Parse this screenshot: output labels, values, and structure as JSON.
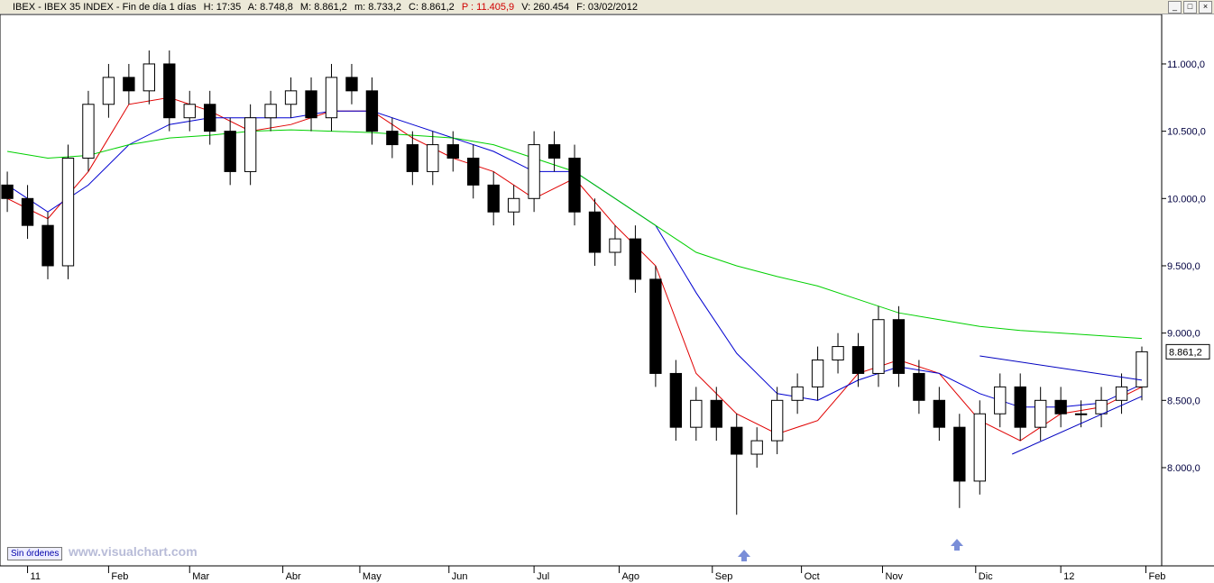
{
  "header": {
    "symbol": "IBEX - IBEX 35 INDEX - Fin de día 1 días",
    "high": "H: 17:35",
    "open": "A: 8.748,8",
    "max": "M: 8.861,2",
    "min": "m: 8.733,2",
    "close": "C: 8.861,2",
    "prev": "P : 11.405,9",
    "volume": "V: 260.454",
    "date": "F: 03/02/2012"
  },
  "footer": {
    "button": "Sin órdenes",
    "watermark": "www.visualchart.com"
  },
  "chart_data": {
    "type": "candlestick",
    "x": [
      0,
      5,
      10,
      15,
      20,
      25,
      30,
      35,
      40,
      45,
      50,
      55,
      60,
      65,
      70,
      75,
      80,
      85,
      90,
      95,
      100,
      105,
      110,
      115,
      120,
      125,
      130,
      135,
      140,
      145,
      150,
      155,
      160,
      165,
      170,
      175,
      180,
      185,
      190,
      195,
      200,
      205,
      210,
      215,
      220,
      225,
      230,
      235,
      240,
      245,
      250,
      255,
      260,
      265,
      270,
      275,
      280
    ],
    "open": [
      10100,
      10000,
      9800,
      9500,
      10300,
      10700,
      10900,
      10800,
      11000,
      10600,
      10700,
      10500,
      10200,
      10600,
      10700,
      10800,
      10600,
      10900,
      10800,
      10500,
      10400,
      10200,
      10400,
      10300,
      10100,
      9900,
      10000,
      10400,
      10300,
      9900,
      9600,
      9700,
      9400,
      8700,
      8300,
      8500,
      8300,
      8100,
      8200,
      8500,
      8600,
      8800,
      8900,
      8700,
      9100,
      8700,
      8500,
      8300,
      7900,
      8400,
      8600,
      8300,
      8500,
      8400,
      8400,
      8500,
      8600
    ],
    "high": [
      10200,
      10100,
      9900,
      10400,
      10800,
      11000,
      11000,
      11100,
      11100,
      10800,
      10800,
      10600,
      10700,
      10800,
      10900,
      10900,
      11000,
      11000,
      10900,
      10600,
      10500,
      10500,
      10500,
      10400,
      10200,
      10100,
      10500,
      10500,
      10400,
      10000,
      9800,
      9800,
      9500,
      8800,
      8600,
      8600,
      8400,
      8300,
      8600,
      8700,
      8900,
      9000,
      9000,
      9200,
      9200,
      8800,
      8600,
      8400,
      8500,
      8700,
      8700,
      8600,
      8600,
      8500,
      8600,
      8700,
      8900
    ],
    "low": [
      9900,
      9700,
      9400,
      9400,
      10200,
      10600,
      10700,
      10700,
      10500,
      10500,
      10400,
      10100,
      10100,
      10500,
      10600,
      10500,
      10500,
      10700,
      10400,
      10300,
      10100,
      10100,
      10200,
      10000,
      9800,
      9800,
      9900,
      10200,
      9800,
      9500,
      9500,
      9300,
      8600,
      8200,
      8200,
      8200,
      7650,
      8000,
      8100,
      8400,
      8500,
      8700,
      8600,
      8600,
      8600,
      8400,
      8200,
      7700,
      7800,
      8300,
      8200,
      8200,
      8300,
      8300,
      8300,
      8400,
      8500
    ],
    "close": [
      10000,
      9800,
      9500,
      10300,
      10700,
      10900,
      10800,
      11000,
      10600,
      10700,
      10500,
      10200,
      10600,
      10700,
      10800,
      10600,
      10900,
      10800,
      10500,
      10400,
      10200,
      10400,
      10300,
      10100,
      9900,
      10000,
      10400,
      10300,
      9900,
      9600,
      9700,
      9400,
      8700,
      8300,
      8500,
      8300,
      8100,
      8200,
      8500,
      8600,
      8800,
      8900,
      8700,
      9100,
      8700,
      8500,
      8300,
      7900,
      8400,
      8600,
      8300,
      8500,
      8400,
      8400,
      8500,
      8600,
      8861
    ],
    "up_color": "#ffffff",
    "down_color": "#000000",
    "averages": [
      {
        "color": "#e00000",
        "x": [
          0,
          10,
          20,
          30,
          40,
          50,
          60,
          70,
          80,
          90,
          100,
          110,
          120,
          130,
          140,
          150,
          160,
          170,
          180,
          190,
          200,
          210,
          220,
          230,
          240,
          250,
          260,
          270,
          280
        ],
        "values": [
          10000,
          9850,
          10200,
          10700,
          10750,
          10650,
          10500,
          10550,
          10650,
          10650,
          10450,
          10300,
          10200,
          10000,
          10150,
          9800,
          9500,
          8700,
          8400,
          8250,
          8350,
          8700,
          8800,
          8700,
          8350,
          8200,
          8400,
          8450,
          8600
        ]
      },
      {
        "color": "#0000d0",
        "x": [
          0,
          10,
          20,
          30,
          40,
          50,
          60,
          70,
          80,
          90,
          100,
          110,
          120,
          130,
          140,
          150,
          160,
          170,
          180,
          190,
          200,
          210,
          220,
          230,
          240,
          250,
          260,
          270,
          280
        ],
        "values": [
          10100,
          9900,
          10100,
          10400,
          10550,
          10600,
          10600,
          10600,
          10650,
          10650,
          10550,
          10450,
          10350,
          10200,
          10200,
          10000,
          9800,
          9300,
          8850,
          8550,
          8500,
          8650,
          8750,
          8700,
          8550,
          8450,
          8450,
          8480,
          8620
        ]
      },
      {
        "color": "#00d000",
        "x": [
          0,
          10,
          20,
          30,
          40,
          50,
          60,
          70,
          80,
          90,
          100,
          110,
          120,
          130,
          140,
          150,
          160,
          170,
          180,
          190,
          200,
          210,
          220,
          230,
          240,
          250,
          260,
          270,
          280
        ],
        "values": [
          10350,
          10300,
          10320,
          10400,
          10450,
          10470,
          10500,
          10510,
          10500,
          10490,
          10470,
          10450,
          10400,
          10300,
          10200,
          10000,
          9800,
          9600,
          9500,
          9420,
          9350,
          9250,
          9150,
          9100,
          9050,
          9020,
          9000,
          8980,
          8960
        ]
      }
    ],
    "trendlines": [
      {
        "color": "#0000c0",
        "x": [
          240,
          280
        ],
        "values": [
          8830,
          8650
        ]
      },
      {
        "color": "#0000c0",
        "x": [
          248,
          280
        ],
        "values": [
          8100,
          8530
        ]
      }
    ],
    "xlim": [
      -1.8,
      284.9
    ],
    "xticks": [
      {
        "value": 5,
        "label": "11"
      },
      {
        "value": 25,
        "label": "Feb"
      },
      {
        "value": 45,
        "label": "Mar"
      },
      {
        "value": 68,
        "label": "Abr"
      },
      {
        "value": 87,
        "label": "May"
      },
      {
        "value": 109,
        "label": "Jun"
      },
      {
        "value": 130,
        "label": "Jul"
      },
      {
        "value": 151,
        "label": "Ago"
      },
      {
        "value": 174,
        "label": "Sep"
      },
      {
        "value": 196,
        "label": "Oct"
      },
      {
        "value": 216,
        "label": "Nov"
      },
      {
        "value": 239,
        "label": "Dic"
      },
      {
        "value": 260,
        "label": "12"
      },
      {
        "value": 281,
        "label": "Feb"
      }
    ],
    "ylim": [
      7270,
      11368
    ],
    "yticks": [
      {
        "value": 8000,
        "label": "8.000,0"
      },
      {
        "value": 8500,
        "label": "8.500,0"
      },
      {
        "value": 9000,
        "label": "9.000,0"
      },
      {
        "value": 9500,
        "label": "9.500,0"
      },
      {
        "value": 10000,
        "label": "10.000,0"
      },
      {
        "value": 10500,
        "label": "10.500,0"
      },
      {
        "value": 11000,
        "label": "11.000,0"
      }
    ],
    "last_price": {
      "value": 8861.2,
      "label": "8.861,2"
    }
  }
}
